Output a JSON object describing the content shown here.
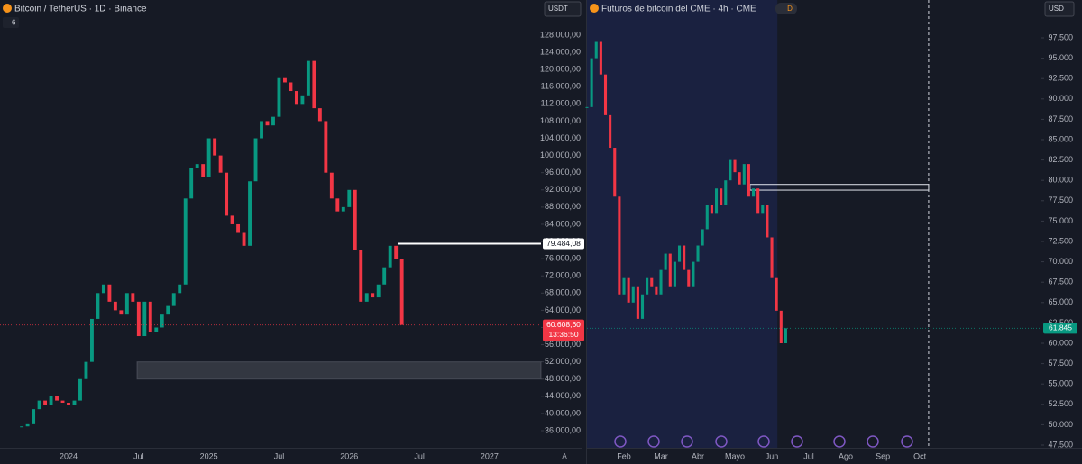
{
  "chart_data": [
    {
      "type": "candlestick",
      "title": "Bitcoin / TetherUS · 1D · Binance",
      "currency": "USDT",
      "indicator_count": "6",
      "up_color": "#089981",
      "down_color": "#f23645",
      "x": [
        -4,
        -3.5,
        -3,
        -2.5,
        -2,
        -1.5,
        -1,
        -0.5,
        0,
        0.5,
        1,
        1.5,
        2,
        2.5,
        3,
        3.5,
        4,
        4.5,
        5,
        5.5,
        6,
        6.5,
        7,
        7.5,
        8,
        8.5,
        9,
        9.5,
        10,
        10.5,
        11,
        11.5,
        12,
        12.5,
        13,
        13.5,
        14,
        14.5,
        15,
        15.5,
        16,
        16.5,
        17,
        17.5,
        18,
        18.5,
        19,
        19.5,
        20,
        20.5,
        21,
        21.5,
        22,
        22.5,
        23,
        23.5,
        24,
        24.5,
        25,
        25.5,
        26,
        26.5,
        27,
        27.5,
        28,
        28.5
      ],
      "closes": [
        37000,
        37500,
        41000,
        43000,
        42000,
        44000,
        43000,
        42500,
        42000,
        43000,
        48000,
        52000,
        62000,
        68000,
        70000,
        66000,
        64000,
        63000,
        68000,
        66000,
        58000,
        66000,
        59000,
        60000,
        63000,
        65000,
        68000,
        70000,
        90000,
        97000,
        98000,
        95000,
        104000,
        100000,
        96000,
        86000,
        84000,
        82000,
        79000,
        94000,
        104000,
        108000,
        107000,
        109000,
        118000,
        117000,
        115000,
        112000,
        114000,
        122000,
        111000,
        108000,
        96000,
        90000,
        87000,
        88000,
        92000,
        78000,
        66000,
        68000,
        67000,
        70000,
        74000,
        79000,
        76000,
        60608
      ],
      "xlim": [
        -5.86,
        40.4
      ],
      "ylim": [
        32020,
        132400
      ],
      "xticks": [
        {
          "value": 0,
          "label": "2024"
        },
        {
          "value": 6,
          "label": "Jul"
        },
        {
          "value": 12,
          "label": "2025"
        },
        {
          "value": 18,
          "label": "Jul"
        },
        {
          "value": 24,
          "label": "2026"
        },
        {
          "value": 30,
          "label": "Jul"
        },
        {
          "value": 36,
          "label": "2027"
        }
      ],
      "yticks": [
        {
          "value": 36000,
          "label": "36.000,00"
        },
        {
          "value": 40000,
          "label": "40.000,00"
        },
        {
          "value": 44000,
          "label": "44.000,00"
        },
        {
          "value": 48000,
          "label": "48.000,00"
        },
        {
          "value": 52000,
          "label": "52.000,00"
        },
        {
          "value": 56000,
          "label": "56.000,00"
        },
        {
          "value": 60000,
          "label": "60.000,00"
        },
        {
          "value": 64000,
          "label": "64.000,00"
        },
        {
          "value": 68000,
          "label": "68.000,00"
        },
        {
          "value": 72000,
          "label": "72.000,00"
        },
        {
          "value": 76000,
          "label": "76.000,00"
        },
        {
          "value": 80000,
          "label": "80.000,00"
        },
        {
          "value": 84000,
          "label": "84.000,00"
        },
        {
          "value": 88000,
          "label": "88.000,00"
        },
        {
          "value": 92000,
          "label": "92.000,00"
        },
        {
          "value": 96000,
          "label": "96.000,00"
        },
        {
          "value": 100000,
          "label": "100.000,00"
        },
        {
          "value": 104000,
          "label": "104.000,00"
        },
        {
          "value": 108000,
          "label": "108.000,00"
        },
        {
          "value": 112000,
          "label": "112.000,00"
        },
        {
          "value": 116000,
          "label": "116.000,00"
        },
        {
          "value": 120000,
          "label": "120.000,00"
        },
        {
          "value": 124000,
          "label": "124.000,00"
        },
        {
          "value": 128000,
          "label": "128.000,00"
        }
      ],
      "last_price": {
        "value": 60608.6,
        "label": "60.608,60",
        "countdown": "13:36:50",
        "color": "#f23645"
      },
      "level": {
        "value": 79484.08,
        "label": "79.484,08",
        "x": 28.14
      },
      "zone": {
        "y": [
          48000,
          52000
        ],
        "x": [
          5.86,
          40.4
        ]
      },
      "axis_mode": "A"
    },
    {
      "type": "candlestick",
      "title": "Futuros de bitcoin del CME · 4h · CME",
      "currency": "USD",
      "session_badge": "D",
      "up_color": "#089981",
      "down_color": "#f23645",
      "x": [
        0,
        0.125,
        0.25,
        0.375,
        0.5,
        0.625,
        0.75,
        0.875,
        1,
        1.125,
        1.25,
        1.375,
        1.5,
        1.625,
        1.75,
        1.875,
        2,
        2.125,
        2.25,
        2.375,
        2.5,
        2.625,
        2.75,
        2.875,
        3,
        3.125,
        3.25,
        3.375,
        3.5,
        3.625,
        3.75,
        3.875,
        4,
        4.125,
        4.25,
        4.375,
        4.5,
        4.625,
        4.75,
        4.875,
        5,
        5.125,
        5.25,
        5.375
      ],
      "closes": [
        89000,
        95000,
        97000,
        93000,
        88000,
        84000,
        78000,
        66000,
        68000,
        65000,
        67000,
        63000,
        66000,
        68000,
        67000,
        66000,
        69000,
        71000,
        67000,
        70000,
        72000,
        69000,
        67000,
        70000,
        72000,
        74000,
        77000,
        76000,
        79000,
        77000,
        80000,
        82500,
        81000,
        79500,
        82000,
        78000,
        79000,
        76000,
        77000,
        73000,
        68000,
        64000,
        60000,
        61845
      ],
      "xlim": [
        0,
        12.29
      ],
      "ylim": [
        47168,
        100155
      ],
      "xticks": [
        {
          "value": 1,
          "label": "Feb"
        },
        {
          "value": 2,
          "label": "Mar"
        },
        {
          "value": 3,
          "label": "Abr"
        },
        {
          "value": 4,
          "label": "Mayo"
        },
        {
          "value": 5,
          "label": "Jun"
        },
        {
          "value": 6,
          "label": "Jul"
        },
        {
          "value": 7,
          "label": "Ago"
        },
        {
          "value": 8,
          "label": "Sep"
        },
        {
          "value": 9,
          "label": "Oct"
        }
      ],
      "yticks": [
        {
          "value": 47500,
          "label": "47.500"
        },
        {
          "value": 50000,
          "label": "50.000"
        },
        {
          "value": 52500,
          "label": "52.500"
        },
        {
          "value": 55000,
          "label": "55.000"
        },
        {
          "value": 57500,
          "label": "57.500"
        },
        {
          "value": 60000,
          "label": "60.000"
        },
        {
          "value": 62500,
          "label": "62.500"
        },
        {
          "value": 65000,
          "label": "65.000"
        },
        {
          "value": 67500,
          "label": "67.500"
        },
        {
          "value": 70000,
          "label": "70.000"
        },
        {
          "value": 72500,
          "label": "72.500"
        },
        {
          "value": 75000,
          "label": "75.000"
        },
        {
          "value": 77500,
          "label": "77.500"
        },
        {
          "value": 80000,
          "label": "80.000"
        },
        {
          "value": 82500,
          "label": "82.500"
        },
        {
          "value": 85000,
          "label": "85.000"
        },
        {
          "value": 87500,
          "label": "87.500"
        },
        {
          "value": 90000,
          "label": "90.000"
        },
        {
          "value": 92500,
          "label": "92.500"
        },
        {
          "value": 95000,
          "label": "95.000"
        },
        {
          "value": 97500,
          "label": "97.500"
        }
      ],
      "last_price": {
        "value": 61845,
        "label": "61.845",
        "color": "#089981"
      },
      "zone": {
        "y": [
          78800,
          79500
        ],
        "x": [
          4.41,
          9.24
        ]
      },
      "vline": 9.24,
      "highlight": [
        0,
        5.15
      ]
    }
  ]
}
